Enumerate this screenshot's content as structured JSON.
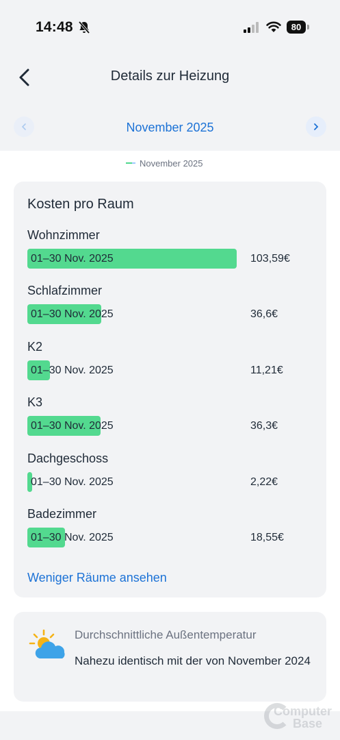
{
  "status_bar": {
    "time": "14:48",
    "battery": "80"
  },
  "header": {
    "title": "Details zur Heizung"
  },
  "month_nav": {
    "label": "November 2025"
  },
  "legend": {
    "label": "November 2025"
  },
  "costs_card": {
    "title": "Kosten pro Raum",
    "period_label": "01–30 Nov. 2025",
    "max_cost": 103.59,
    "rooms": [
      {
        "name": "Wohnzimmer",
        "cost": 103.59,
        "cost_label": "103,59€"
      },
      {
        "name": "Schlafzimmer",
        "cost": 36.6,
        "cost_label": "36,6€"
      },
      {
        "name": "K2",
        "cost": 11.21,
        "cost_label": "11,21€"
      },
      {
        "name": "K3",
        "cost": 36.3,
        "cost_label": "36,3€"
      },
      {
        "name": "Dachgeschoss",
        "cost": 2.22,
        "cost_label": "2,22€"
      },
      {
        "name": "Badezimmer",
        "cost": 18.55,
        "cost_label": "18,55€"
      }
    ],
    "less_link": "Weniger Räume ansehen"
  },
  "temperature_card": {
    "title": "Durchschnittliche Außentemperatur",
    "text": "Nahezu identisch mit der von November 2024"
  },
  "colors": {
    "accent": "#1c72d6",
    "bar": "#53d98f"
  },
  "watermark": {
    "line1": "Computer",
    "line2": "Base"
  }
}
